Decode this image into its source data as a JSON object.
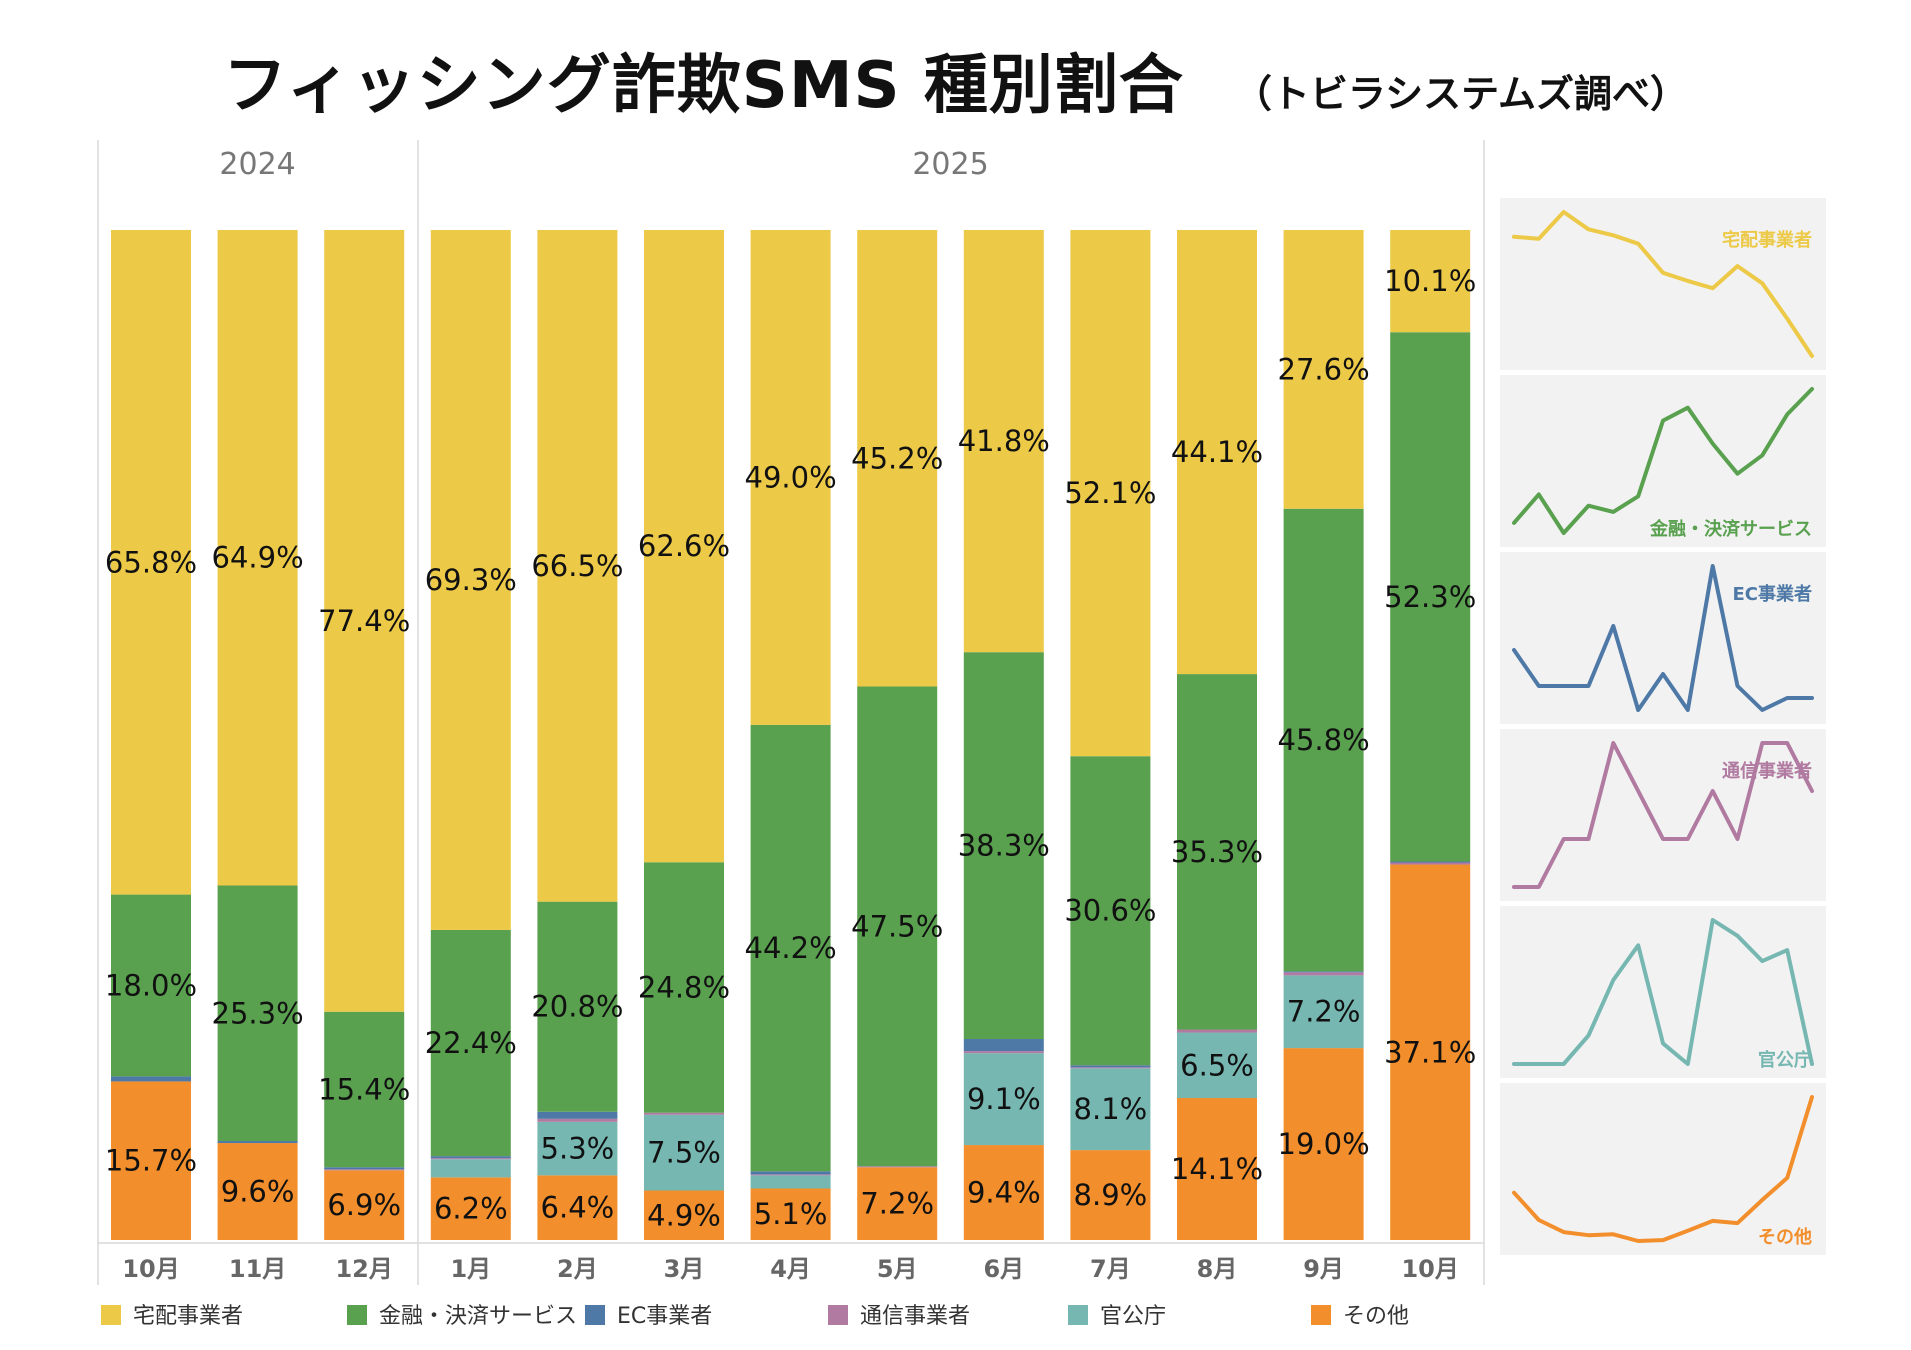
{
  "title": {
    "main": "フィッシング詐欺SMS 種別割合",
    "sub": "（トビラシステムズ調べ）"
  },
  "chart_data": {
    "type": "bar",
    "stacked": true,
    "normalized": true,
    "year_groups": [
      {
        "label": "2024",
        "count": 3
      },
      {
        "label": "2025",
        "count": 10
      }
    ],
    "categories": [
      "10月",
      "11月",
      "12月",
      "1月",
      "2月",
      "3月",
      "4月",
      "5月",
      "6月",
      "7月",
      "8月",
      "9月",
      "10月"
    ],
    "series": [
      {
        "name": "その他",
        "color": "#F28E2B",
        "values": [
          15.7,
          9.6,
          6.9,
          6.2,
          6.4,
          4.9,
          5.1,
          7.2,
          9.4,
          8.9,
          14.1,
          19.0,
          37.1
        ],
        "labels": [
          "15.7%",
          "9.6%",
          "6.9%",
          "6.2%",
          "6.4%",
          "4.9%",
          "5.1%",
          "7.2%",
          "9.4%",
          "8.9%",
          "14.1%",
          "19.0%",
          "37.1%"
        ]
      },
      {
        "name": "官公庁",
        "color": "#76B7B2",
        "values": [
          0.0,
          0.0,
          0.0,
          1.8,
          5.3,
          7.5,
          1.3,
          0.0,
          9.1,
          8.1,
          6.5,
          7.2,
          0.0
        ],
        "labels": [
          "",
          "",
          "",
          "",
          "5.3%",
          "7.5%",
          "",
          "",
          "9.1%",
          "8.1%",
          "6.5%",
          "7.2%",
          ""
        ]
      },
      {
        "name": "通信事業者",
        "color": "#B07AA1",
        "values": [
          0.0,
          0.0,
          0.1,
          0.1,
          0.3,
          0.2,
          0.1,
          0.1,
          0.2,
          0.1,
          0.3,
          0.3,
          0.2
        ],
        "labels": [
          "",
          "",
          "",
          "",
          "",
          "",
          "",
          "",
          "",
          "",
          "",
          "",
          ""
        ]
      },
      {
        "name": "EC事業者",
        "color": "#4E79A7",
        "values": [
          0.5,
          0.2,
          0.2,
          0.2,
          0.7,
          0.0,
          0.3,
          0.0,
          1.2,
          0.2,
          0.0,
          0.1,
          0.1
        ],
        "labels": [
          "",
          "",
          "",
          "",
          "",
          "",
          "",
          "",
          "",
          "",
          "",
          "",
          ""
        ]
      },
      {
        "name": "金融・決済サービス",
        "color": "#59A14F",
        "values": [
          18.0,
          25.3,
          15.4,
          22.4,
          20.8,
          24.8,
          44.2,
          47.5,
          38.3,
          30.6,
          35.3,
          45.8,
          52.3
        ],
        "labels": [
          "18.0%",
          "25.3%",
          "15.4%",
          "22.4%",
          "20.8%",
          "24.8%",
          "44.2%",
          "47.5%",
          "38.3%",
          "30.6%",
          "35.3%",
          "45.8%",
          "52.3%"
        ]
      },
      {
        "name": "宅配事業者",
        "color": "#EDC948",
        "values": [
          65.8,
          64.9,
          77.4,
          69.3,
          66.5,
          62.6,
          49.0,
          45.2,
          41.8,
          52.1,
          44.1,
          27.6,
          10.1
        ],
        "labels": [
          "65.8%",
          "64.9%",
          "77.4%",
          "69.3%",
          "66.5%",
          "62.6%",
          "49.0%",
          "45.2%",
          "41.8%",
          "52.1%",
          "44.1%",
          "27.6%",
          "10.1%"
        ]
      }
    ],
    "legend": {
      "position": "bottom",
      "order": [
        "宅配事業者",
        "金融・決済サービス",
        "EC事業者",
        "通信事業者",
        "官公庁",
        "その他"
      ]
    },
    "ylim": [
      0,
      100
    ],
    "sparklines": {
      "order": [
        "宅配事業者",
        "金融・決済サービス",
        "EC事業者",
        "通信事業者",
        "官公庁",
        "その他"
      ],
      "background": "#F2F2F2"
    }
  }
}
